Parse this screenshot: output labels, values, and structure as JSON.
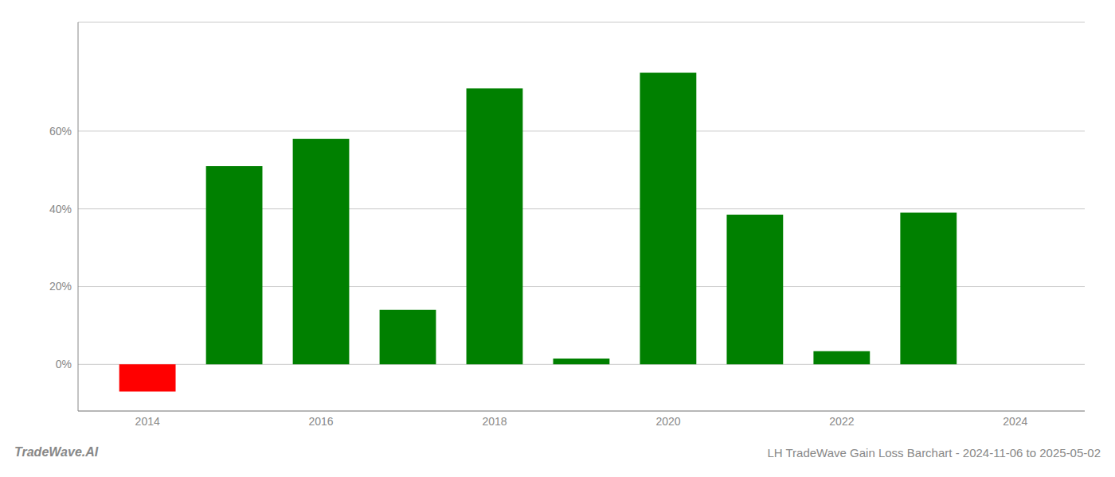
{
  "chart_data": {
    "type": "bar",
    "x": [
      2014,
      2015,
      2016,
      2017,
      2018,
      2019,
      2020,
      2021,
      2022,
      2023
    ],
    "values": [
      -0.07,
      0.51,
      0.58,
      0.14,
      0.71,
      0.015,
      0.75,
      0.385,
      0.034,
      0.39
    ],
    "colors": [
      "#ff0000",
      "#008000",
      "#008000",
      "#008000",
      "#008000",
      "#008000",
      "#008000",
      "#008000",
      "#008000",
      "#008000"
    ],
    "xlim": [
      2013.2,
      2024.8
    ],
    "xticks": [
      2014,
      2016,
      2018,
      2020,
      2022,
      2024
    ],
    "ylim": [
      -0.12,
      0.88
    ],
    "yticks": [
      {
        "value": 0.0,
        "label": "0%"
      },
      {
        "value": 0.2,
        "label": "20%"
      },
      {
        "value": 0.4,
        "label": "40%"
      },
      {
        "value": 0.6,
        "label": "60%"
      }
    ],
    "grid": true,
    "annotations": [
      "TradeWave.AI",
      "LH TradeWave Gain Loss Barchart - 2024-11-06 to 2025-05-02"
    ]
  }
}
